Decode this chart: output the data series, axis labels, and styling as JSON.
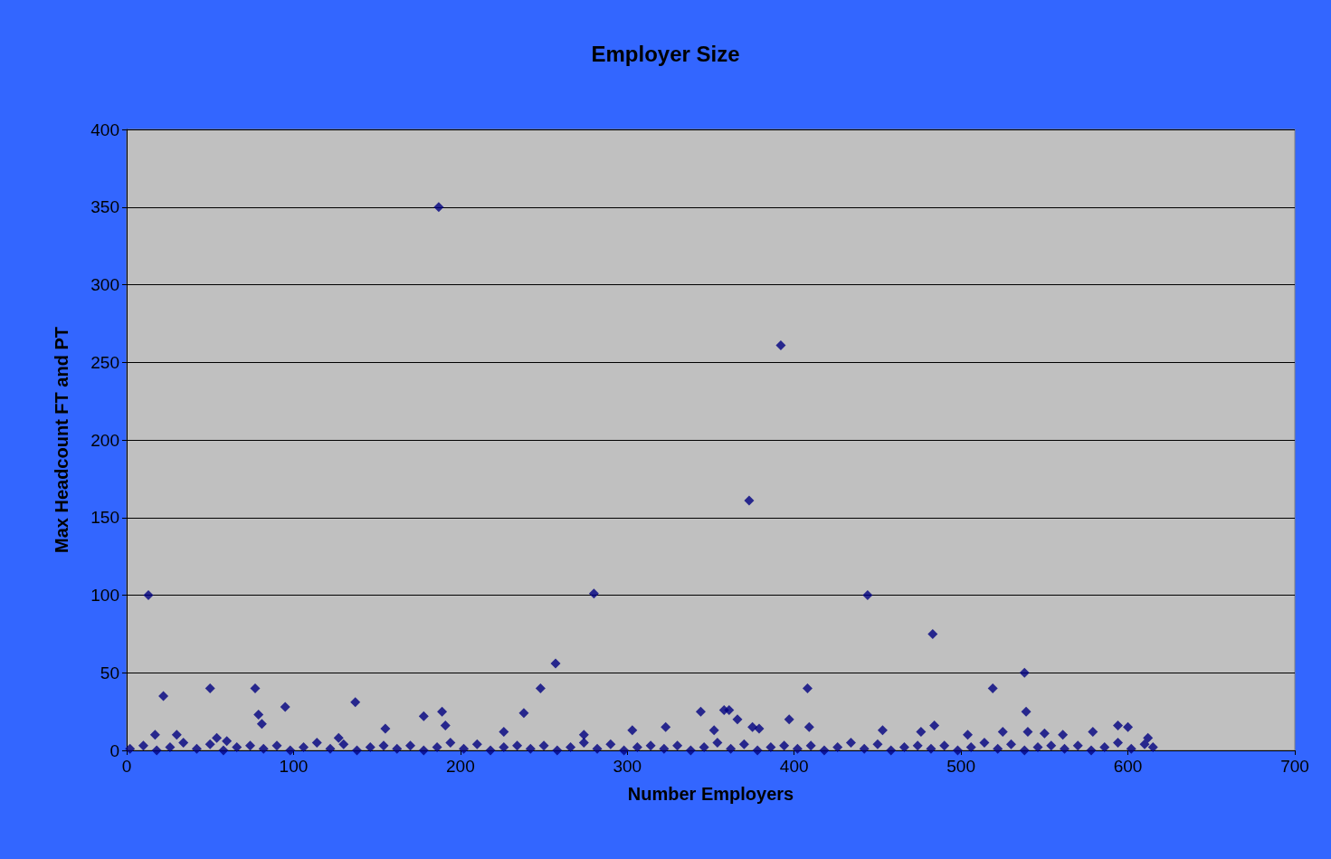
{
  "chart_data": {
    "type": "scatter",
    "title": "Employer Size",
    "xlabel": "Number Employers",
    "ylabel": "Max Headcount FT and PT",
    "x": [
      13,
      22,
      50,
      77,
      79,
      81,
      95,
      137,
      155,
      178,
      187,
      189,
      191,
      226,
      238,
      248,
      257,
      274,
      280,
      303,
      323,
      344,
      352,
      358,
      361,
      366,
      373,
      375,
      379,
      392,
      397,
      408,
      409,
      444,
      453,
      476,
      483,
      484,
      504,
      519,
      525,
      538,
      539,
      540,
      550,
      561,
      579,
      594,
      600,
      612,
      17,
      30,
      54,
      60,
      127,
      2,
      10,
      18,
      26,
      34,
      42,
      50,
      58,
      66,
      74,
      82,
      90,
      98,
      106,
      114,
      122,
      130,
      138,
      146,
      154,
      162,
      170,
      178,
      186,
      194,
      202,
      210,
      218,
      226,
      234,
      242,
      250,
      258,
      266,
      274,
      282,
      290,
      298,
      306,
      314,
      322,
      330,
      338,
      346,
      354,
      362,
      370,
      378,
      386,
      394,
      402,
      410,
      418,
      426,
      434,
      442,
      450,
      458,
      466,
      474,
      482,
      490,
      498,
      506,
      514,
      522,
      530,
      538,
      546,
      554,
      562,
      570,
      578,
      586,
      594,
      602,
      610,
      615
    ],
    "values": [
      100,
      35,
      40,
      40,
      23,
      17,
      28,
      31,
      14,
      22,
      350,
      25,
      16,
      12,
      24,
      40,
      56,
      10,
      101,
      13,
      15,
      25,
      13,
      26,
      26,
      20,
      161,
      15,
      14,
      261,
      20,
      40,
      15,
      100,
      13,
      12,
      75,
      16,
      10,
      40,
      12,
      50,
      25,
      12,
      11,
      10,
      12,
      16,
      15,
      8,
      10,
      10,
      8,
      6,
      8,
      1,
      3,
      0,
      2,
      5,
      1,
      4,
      0,
      2,
      3,
      1,
      3,
      0,
      2,
      5,
      1,
      4,
      0,
      2,
      3,
      1,
      3,
      0,
      2,
      5,
      1,
      4,
      0,
      2,
      3,
      1,
      3,
      0,
      2,
      5,
      1,
      4,
      0,
      2,
      3,
      1,
      3,
      0,
      2,
      5,
      1,
      4,
      0,
      2,
      3,
      1,
      3,
      0,
      2,
      5,
      1,
      4,
      0,
      2,
      3,
      1,
      3,
      0,
      2,
      5,
      1,
      4,
      0,
      2,
      3,
      1,
      3,
      0,
      2,
      5,
      1,
      4,
      2
    ],
    "color": "#000080",
    "marker": "diamond",
    "xlim": [
      0,
      700
    ],
    "xticks": [
      0,
      100,
      200,
      300,
      400,
      500,
      600,
      700
    ],
    "ylim": [
      0,
      400
    ],
    "yticks": [
      0,
      50,
      100,
      150,
      200,
      250,
      300,
      350,
      400
    ],
    "grid": "y"
  }
}
